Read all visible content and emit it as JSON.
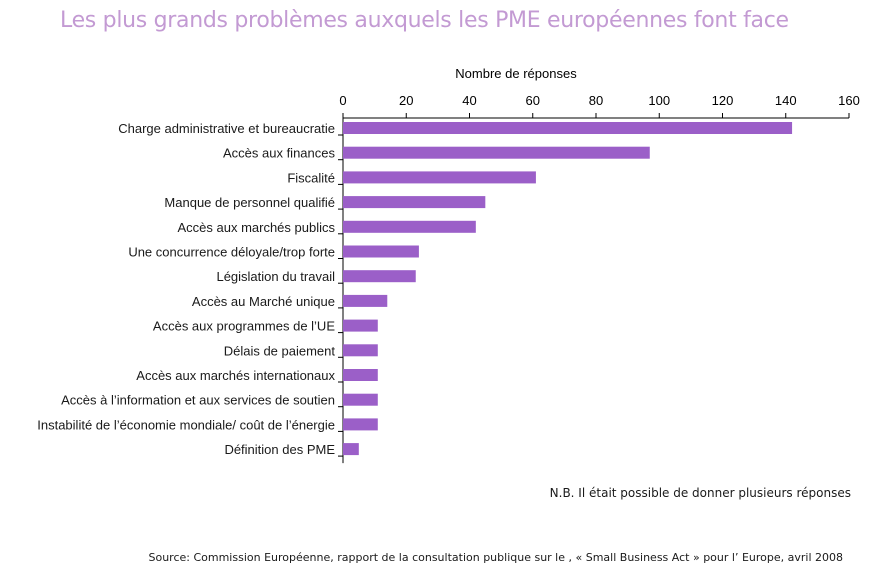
{
  "title": "Les plus grands problèmes auxquels les PME européennes font face",
  "note": "N.B. Il était possible de donner plusieurs réponses",
  "source": "Source: Commission Européenne, rapport de la consultation publique sur le , « Small Business Act » pour l’ Europe, avril 2008",
  "colors": {
    "bar": "#9b5fc8",
    "title": "#c39ad3",
    "axis": "#000000"
  },
  "chart_data": {
    "type": "bar",
    "orientation": "horizontal",
    "xlabel": "Nombre de réponses",
    "xlim": [
      0,
      160
    ],
    "xticks": [
      0,
      20,
      40,
      60,
      80,
      100,
      120,
      140,
      160
    ],
    "grid": false,
    "axis_position": "top",
    "categories": [
      "Charge administrative et bureaucratie",
      "Accès aux finances",
      "Fiscalité",
      "Manque de personnel qualifié",
      "Accès aux marchés publics",
      "Une concurrence déloyale/trop forte",
      "Législation du travail",
      "Accès au Marché unique",
      "Accès aux programmes de l’UE",
      "Délais de paiement",
      "Accès aux marchés internationaux",
      "Accès à l’information et aux services de soutien",
      "Instabilité de l’économie mondiale/ coût de l’énergie",
      "Définition des PME"
    ],
    "values": [
      142,
      97,
      61,
      45,
      42,
      24,
      23,
      14,
      11,
      11,
      11,
      11,
      11,
      5
    ]
  }
}
